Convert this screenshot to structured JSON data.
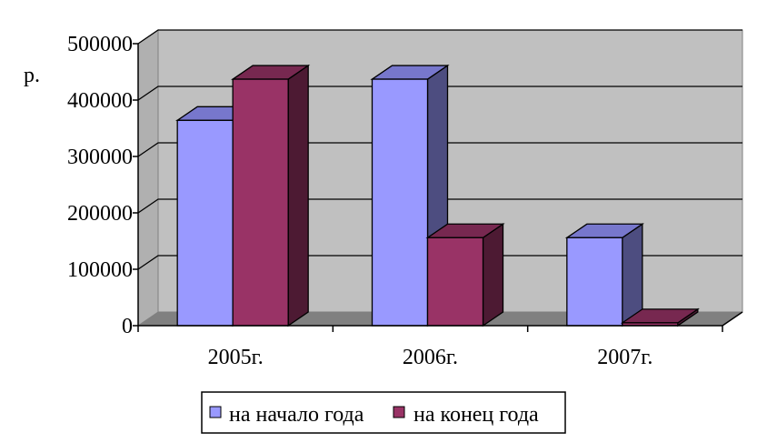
{
  "chart_data": {
    "type": "bar",
    "style": "3d-clustered",
    "categories": [
      "2005г.",
      "2006г.",
      "2007г."
    ],
    "series": [
      {
        "name": "на начало года",
        "values": [
          364000,
          437000,
          156000
        ],
        "color": "#9999FF",
        "side": "#4D4D80",
        "top": "#7777CC"
      },
      {
        "name": "на конец года",
        "values": [
          437000,
          156000,
          5000
        ],
        "color": "#993366",
        "side": "#4D1A33",
        "top": "#772850"
      }
    ],
    "ylabel": "р.",
    "ylim": [
      0,
      500000
    ],
    "yticks": [
      0,
      100000,
      200000,
      300000,
      400000,
      500000
    ],
    "grid": true,
    "legend": "bottom",
    "wall_color": "#C0C0C0",
    "floor_color": "#808080"
  }
}
